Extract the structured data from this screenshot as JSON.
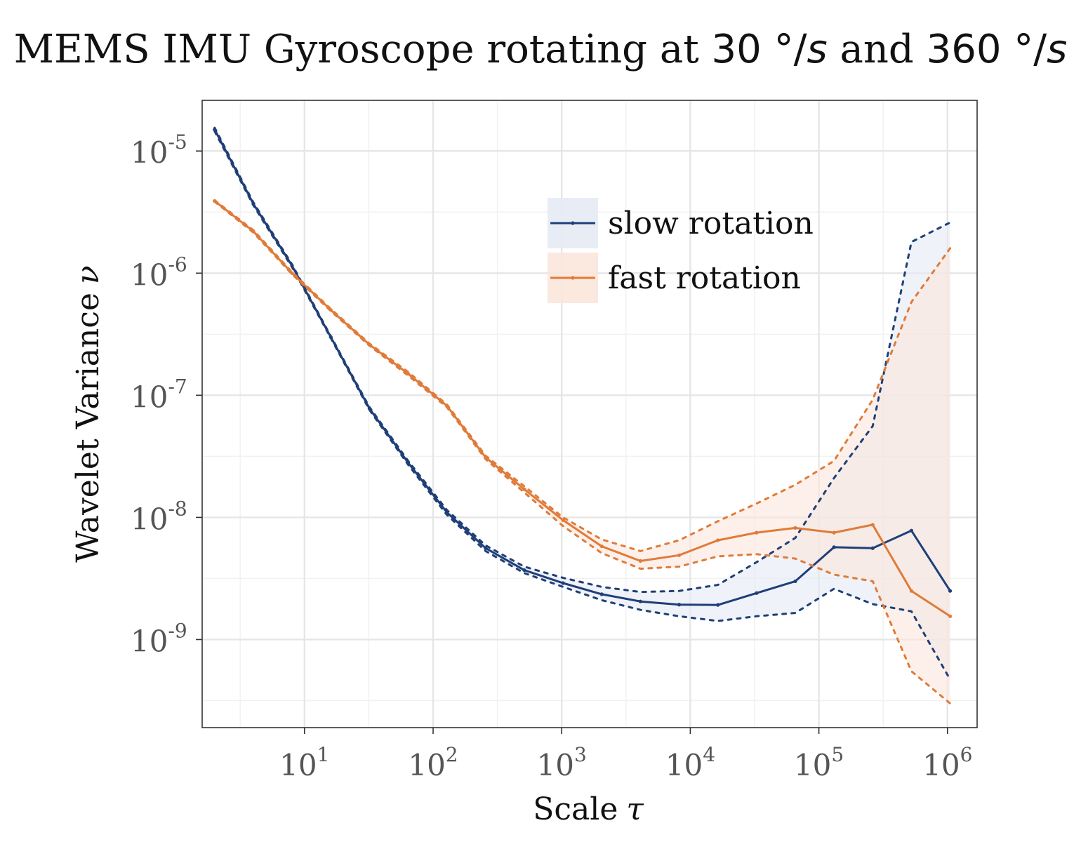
{
  "chart_data": {
    "type": "line",
    "title_parts": {
      "prefix": "MEMS IMU Gyroscope rotating at ",
      "rate1": "30",
      "unit": "°/",
      "s": "s",
      "middle": " and ",
      "rate2": "360"
    },
    "xlabel": "Scale",
    "xlabel_symbol": "τ",
    "ylabel": "Wavelet Variance",
    "ylabel_symbol": "ν",
    "x_scale": "log10",
    "y_scale": "log10",
    "xlim": [
      1.6,
      1700000.0
    ],
    "ylim": [
      1.9e-10,
      2.6e-05
    ],
    "x_ticks": [
      10,
      100,
      1000,
      10000,
      100000,
      1000000
    ],
    "x_tick_exponents": [
      "1",
      "2",
      "3",
      "4",
      "5",
      "6"
    ],
    "y_ticks": [
      1e-09,
      1e-08,
      1e-07,
      1e-06,
      1e-05
    ],
    "y_tick_exponents": [
      "-9",
      "-8",
      "-7",
      "-6",
      "-5"
    ],
    "tick_base": "10",
    "grid": true,
    "legend_position": "top-right",
    "x": [
      2,
      4,
      8,
      16,
      32,
      64,
      128,
      256,
      512,
      1024,
      2048,
      4096,
      8192,
      16384,
      32768,
      65536,
      131072,
      262144,
      524288,
      1048576
    ],
    "series": [
      {
        "name": "slow rotation",
        "color": "#1f3f78",
        "fill": "#e5eaf4",
        "values": [
          1.5e-05,
          3.7e-06,
          1.15e-06,
          3e-07,
          7.8e-08,
          2.8e-08,
          1.1e-08,
          5.6e-09,
          3.7e-09,
          2.9e-09,
          2.35e-09,
          2.05e-09,
          1.93e-09,
          1.92e-09,
          2.4e-09,
          3e-09,
          5.7e-09,
          5.6e-09,
          7.8e-09,
          2.5e-09
        ],
        "lower": [
          1.45e-05,
          3.6e-06,
          1.12e-06,
          2.95e-07,
          7.6e-08,
          2.7e-08,
          1.05e-08,
          5.3e-09,
          3.5e-09,
          2.7e-09,
          2.1e-09,
          1.75e-09,
          1.55e-09,
          1.42e-09,
          1.55e-09,
          1.65e-09,
          2.6e-09,
          1.95e-09,
          1.7e-09,
          4.7e-10
        ],
        "upper": [
          1.55e-05,
          3.8e-06,
          1.18e-06,
          3.05e-07,
          8e-08,
          2.9e-08,
          1.15e-08,
          5.9e-09,
          3.95e-09,
          3.2e-09,
          2.7e-09,
          2.45e-09,
          2.5e-09,
          2.8e-09,
          4.3e-09,
          6.8e-09,
          2.1e-08,
          5.6e-08,
          1.8e-06,
          2.6e-06
        ]
      },
      {
        "name": "fast rotation",
        "color": "#e07b39",
        "fill": "#fbe6dc",
        "values": [
          3.9e-06,
          2.2e-06,
          1e-06,
          5e-07,
          2.6e-07,
          1.5e-07,
          8.2e-08,
          3.1e-08,
          1.7e-08,
          9.5e-09,
          5.8e-09,
          4.4e-09,
          4.9e-09,
          6.5e-09,
          7.5e-09,
          8.2e-09,
          7.5e-09,
          8.7e-09,
          2.5e-09,
          1.55e-09
        ],
        "lower": [
          3.85e-06,
          2.15e-06,
          9.8e-07,
          4.9e-07,
          2.55e-07,
          1.45e-07,
          8e-08,
          3e-08,
          1.6e-08,
          8.5e-09,
          5.1e-09,
          3.8e-09,
          3.95e-09,
          4.8e-09,
          5e-09,
          4.6e-09,
          3.4e-09,
          3e-09,
          5.5e-10,
          3e-10
        ],
        "upper": [
          3.95e-06,
          2.25e-06,
          1.02e-06,
          5.1e-07,
          2.65e-07,
          1.55e-07,
          8.4e-08,
          3.2e-08,
          1.8e-08,
          1e-08,
          6.6e-09,
          5.3e-09,
          6.5e-09,
          9.3e-09,
          1.3e-08,
          1.85e-08,
          2.9e-08,
          9.2e-08,
          5.8e-07,
          1.6e-06
        ]
      }
    ]
  }
}
